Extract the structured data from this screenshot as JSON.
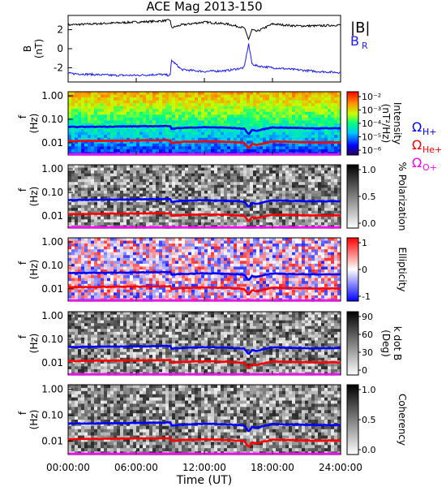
{
  "title": "ACE Mag 2013-150",
  "time_axis": {
    "label": "Time (UT)",
    "ticks": [
      "00:00:00",
      "06:00:00",
      "12:00:00",
      "18:00:00",
      "24:00:00"
    ]
  },
  "freq_axis": {
    "label_line1": "f",
    "label_line2": "(Hz)",
    "ticks": [
      "1.00",
      "0.10",
      "0.01"
    ]
  },
  "legend": {
    "B": "|B|",
    "BR": "B",
    "BR_sub": "R",
    "H": "Ω",
    "H_sub": "H+",
    "He": "Ω",
    "He_sub": "He+",
    "O": "Ω",
    "O_sub": "O+"
  },
  "colors": {
    "B_line": "#000000",
    "BR_line": "#1a1aff",
    "H_gyro": "#0000ff",
    "He_gyro": "#ff0000",
    "O_gyro": "#ff00ff"
  },
  "panels": [
    {
      "id": "mag",
      "ylabel1": "B",
      "ylabel2": "(nT)",
      "yticks": [
        "2",
        "0",
        "-2"
      ]
    },
    {
      "id": "intensity",
      "cbar_label1": "Intensity",
      "cbar_label2": "(nT²/Hz)",
      "cbar_ticks": [
        "10⁻²",
        "10⁻³",
        "10⁻⁴",
        "10⁻⁵",
        "10⁻⁶"
      ]
    },
    {
      "id": "polarization",
      "cbar_label1": "% Polarization",
      "cbar_label2": "",
      "cbar_ticks": [
        "1.0",
        "0.5",
        "0.0"
      ]
    },
    {
      "id": "ellipticity",
      "cbar_label1": "Ellipticity",
      "cbar_label2": "",
      "cbar_ticks": [
        "1",
        "0",
        "-1"
      ]
    },
    {
      "id": "kdotb",
      "cbar_label1": "k dot B",
      "cbar_label2": "(Deg)",
      "cbar_ticks": [
        "90",
        "60",
        "30",
        "0"
      ]
    },
    {
      "id": "coherency",
      "cbar_label1": "Coherency",
      "cbar_label2": "",
      "cbar_ticks": [
        "1.0",
        "0.5",
        "0.0"
      ]
    }
  ],
  "chart_data": {
    "type": "line",
    "title": "ACE Mag 2013-150",
    "xlabel": "Time (UT)",
    "x_hours": [
      0,
      2,
      4,
      6,
      8,
      9,
      9.1,
      10,
      12,
      14,
      15.5,
      15.9,
      16.2,
      16.6,
      18,
      20,
      22,
      24
    ],
    "B_total_nT": [
      2.5,
      2.6,
      2.7,
      2.8,
      2.9,
      3.0,
      2.2,
      2.5,
      2.8,
      2.6,
      2.2,
      1.0,
      2.0,
      1.8,
      2.6,
      2.4,
      2.4,
      2.5
    ],
    "B_R_nT": [
      -2.6,
      -2.7,
      -2.8,
      -2.8,
      -2.7,
      -2.8,
      -1.2,
      -2.2,
      -2.4,
      -2.3,
      -2.0,
      0.5,
      -1.6,
      -1.8,
      -2.0,
      -2.2,
      -2.4,
      -2.5
    ],
    "B_ylim": [
      -3.5,
      3.5
    ],
    "f_H_plus_Hz": [
      0.047,
      0.048,
      0.049,
      0.05,
      0.051,
      0.052,
      0.04,
      0.043,
      0.046,
      0.044,
      0.04,
      0.022,
      0.035,
      0.032,
      0.045,
      0.043,
      0.041,
      0.042
    ],
    "f_He_plus_Hz": [
      0.0118,
      0.012,
      0.0123,
      0.0125,
      0.0128,
      0.013,
      0.01,
      0.0108,
      0.0115,
      0.011,
      0.01,
      0.0055,
      0.0088,
      0.008,
      0.0112,
      0.0108,
      0.0103,
      0.0105
    ],
    "f_O_plus_Hz": [
      0.0029,
      0.003,
      0.0031,
      0.0031,
      0.0032,
      0.0033,
      0.0025,
      0.0027,
      0.0029,
      0.0028,
      0.0025,
      0.0014,
      0.0022,
      0.002,
      0.0028,
      0.0027,
      0.0026,
      0.0026
    ],
    "f_ylim": [
      0.003,
      1.5
    ],
    "f_log": true,
    "xlim": [
      0,
      24
    ]
  }
}
